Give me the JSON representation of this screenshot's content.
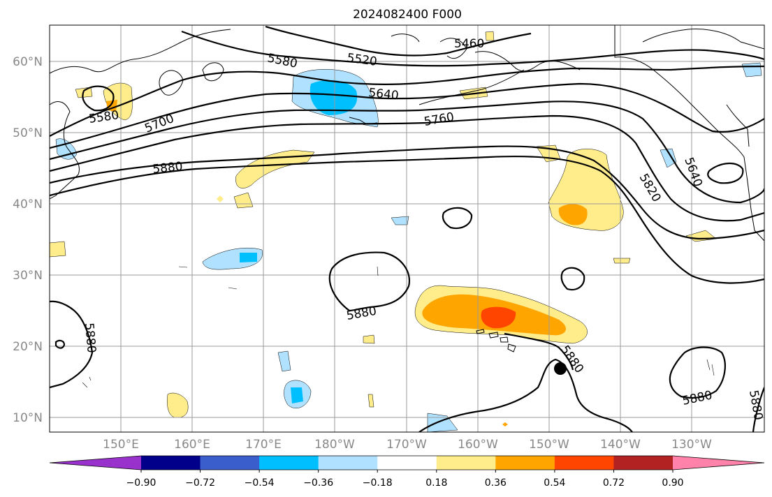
{
  "map": {
    "title": "2024082400 F000",
    "lon_labels": [
      "150°E",
      "160°E",
      "170°E",
      "180°W",
      "170°W",
      "160°W",
      "150°W",
      "140°W",
      "130°W"
    ],
    "lat_labels": [
      "60°N",
      "50°N",
      "40°N",
      "30°N",
      "20°N",
      "10°N"
    ],
    "contour_labels": [
      "5460",
      "5520",
      "5580",
      "5580",
      "5640",
      "5700",
      "5760",
      "5880",
      "5640",
      "5820",
      "5880",
      "5880",
      "5880",
      "5880",
      "5880"
    ],
    "marker": "storm-center-dot"
  },
  "colorbar": {
    "ticks": [
      "−0.90",
      "−0.72",
      "−0.54",
      "−0.36",
      "−0.18",
      "0.18",
      "0.36",
      "0.54",
      "0.72",
      "0.90"
    ],
    "colors": [
      "#9932cc",
      "#00008b",
      "#3a5fcd",
      "#00bfff",
      "#b0e2ff",
      "#ffffff",
      "#ffec8b",
      "#ffa500",
      "#ff4500",
      "#b22222",
      "#ff82ab"
    ],
    "extend": "both"
  }
}
